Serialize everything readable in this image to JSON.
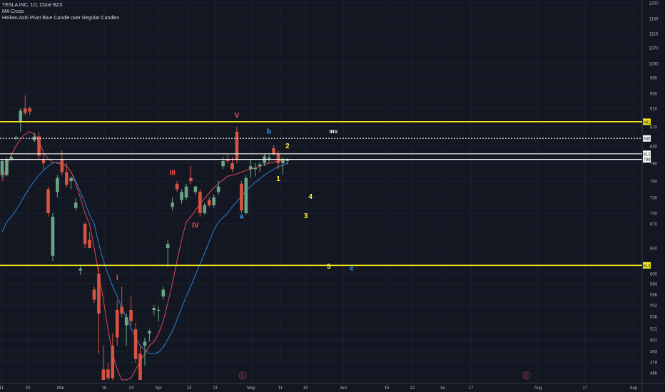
{
  "header": {
    "symbol": "TESLA INC, 1D, Cboe BZX",
    "indicator_1": "MA Cross",
    "indicator_2": "Heiken Ashi Pivot Blue Candle over Regular Candles"
  },
  "colors": {
    "background": "#131722",
    "grid": "#1c2030",
    "up": "#6ba583",
    "down": "#d75442",
    "ha_blue": "#2196f3",
    "ma_fast": "#e0455a",
    "ma_slow": "#2a7fd4",
    "yellow_line": "#f5ea1e",
    "white_line": "#ffffff",
    "label_red": "#ef5350",
    "label_blue": "#42a5f5",
    "label_yellow": "#ffeb3b",
    "axis_text": "#b2b5be"
  },
  "chart_data": {
    "type": "candlestick",
    "y_axis": {
      "range": [
        458,
        1205
      ],
      "tick_labels": [
        "1200",
        "1150",
        "1110",
        "1070",
        "1030",
        "990",
        "950",
        "910",
        "870",
        "830",
        "790",
        "760",
        "730",
        "700",
        "670",
        "640",
        "600",
        "584",
        "568",
        "552",
        "536",
        "521",
        "507",
        "493",
        "479",
        "466"
      ]
    },
    "x_axis": {
      "tick_labels": [
        "11",
        "20",
        "Mar",
        "16",
        "24",
        "Apr",
        "13",
        "21",
        "May",
        "11",
        "19",
        "Jun",
        "15",
        "22",
        "Jul",
        "17",
        "Aug",
        "17",
        "Sep"
      ]
    },
    "candles": [
      {
        "o": 795,
        "h": 800,
        "l": 765,
        "c": 770,
        "t": "up"
      },
      {
        "o": 770,
        "h": 805,
        "l": 768,
        "c": 800,
        "t": "up"
      },
      {
        "o": 800,
        "h": 810,
        "l": 795,
        "c": 805,
        "t": "up"
      },
      {
        "o": 848,
        "h": 852,
        "l": 842,
        "c": 846,
        "t": "up"
      },
      {
        "o": 880,
        "h": 910,
        "l": 860,
        "c": 905,
        "t": "up"
      },
      {
        "o": 900,
        "h": 945,
        "l": 895,
        "c": 910,
        "t": "down"
      },
      {
        "o": 910,
        "h": 915,
        "l": 895,
        "c": 903,
        "t": "down"
      },
      {
        "o": 850,
        "h": 858,
        "l": 838,
        "c": 842,
        "t": "up"
      },
      {
        "o": 850,
        "h": 860,
        "l": 800,
        "c": 808,
        "t": "down"
      },
      {
        "o": 800,
        "h": 812,
        "l": 780,
        "c": 790,
        "t": "down"
      },
      {
        "o": 745,
        "h": 750,
        "l": 690,
        "c": 700,
        "t": "down"
      },
      {
        "o": 690,
        "h": 700,
        "l": 620,
        "c": 628,
        "t": "up"
      },
      {
        "o": 740,
        "h": 770,
        "l": 730,
        "c": 765,
        "t": "up"
      },
      {
        "o": 800,
        "h": 820,
        "l": 770,
        "c": 775,
        "t": "down"
      },
      {
        "o": 775,
        "h": 790,
        "l": 748,
        "c": 753,
        "t": "down"
      },
      {
        "o": 760,
        "h": 768,
        "l": 745,
        "c": 765,
        "t": "up"
      },
      {
        "o": 720,
        "h": 728,
        "l": 705,
        "c": 710,
        "t": "up"
      },
      {
        "o": 605,
        "h": 612,
        "l": 598,
        "c": 608,
        "t": "up"
      },
      {
        "o": 670,
        "h": 675,
        "l": 640,
        "c": 645,
        "t": "down"
      },
      {
        "o": 650,
        "h": 660,
        "l": 640,
        "c": 640,
        "t": "down"
      },
      {
        "o": 575,
        "h": 580,
        "l": 555,
        "c": 560,
        "t": "down"
      },
      {
        "o": 600,
        "h": 610,
        "l": 490,
        "c": 540,
        "t": "down"
      },
      {
        "o": 470,
        "h": 500,
        "l": 450,
        "c": 455,
        "t": "down"
      },
      {
        "o": 470,
        "h": 478,
        "l": 455,
        "c": 460,
        "t": "down"
      },
      {
        "o": 500,
        "h": 515,
        "l": 455,
        "c": 460,
        "t": "down"
      },
      {
        "o": 545,
        "h": 560,
        "l": 500,
        "c": 510,
        "t": "down"
      },
      {
        "o": 550,
        "h": 580,
        "l": 535,
        "c": 540,
        "t": "down"
      },
      {
        "o": 525,
        "h": 540,
        "l": 500,
        "c": 535,
        "t": "up"
      },
      {
        "o": 545,
        "h": 565,
        "l": 525,
        "c": 530,
        "t": "down"
      },
      {
        "o": 520,
        "h": 528,
        "l": 478,
        "c": 483,
        "t": "down"
      },
      {
        "o": 490,
        "h": 500,
        "l": 450,
        "c": 455,
        "t": "down"
      },
      {
        "o": 505,
        "h": 510,
        "l": 475,
        "c": 500,
        "t": "up"
      },
      {
        "o": 515,
        "h": 520,
        "l": 505,
        "c": 518,
        "t": "up"
      },
      {
        "o": 545,
        "h": 552,
        "l": 538,
        "c": 548,
        "t": "up"
      },
      {
        "o": 545,
        "h": 550,
        "l": 530,
        "c": 545,
        "t": "up"
      },
      {
        "o": 565,
        "h": 580,
        "l": 560,
        "c": 575,
        "t": "up"
      },
      {
        "o": 640,
        "h": 650,
        "l": 610,
        "c": 645,
        "t": "up"
      },
      {
        "o": 720,
        "h": 730,
        "l": 705,
        "c": 712,
        "t": "up"
      },
      {
        "o": 745,
        "h": 760,
        "l": 740,
        "c": 755,
        "t": "down"
      },
      {
        "o": 725,
        "h": 745,
        "l": 718,
        "c": 740,
        "t": "up"
      },
      {
        "o": 730,
        "h": 755,
        "l": 725,
        "c": 750,
        "t": "up"
      },
      {
        "o": 765,
        "h": 785,
        "l": 755,
        "c": 760,
        "t": "down"
      },
      {
        "o": 740,
        "h": 752,
        "l": 735,
        "c": 750,
        "t": "up"
      },
      {
        "o": 740,
        "h": 745,
        "l": 690,
        "c": 700,
        "t": "down"
      },
      {
        "o": 700,
        "h": 720,
        "l": 695,
        "c": 715,
        "t": "up"
      },
      {
        "o": 725,
        "h": 730,
        "l": 712,
        "c": 715,
        "t": "down"
      },
      {
        "o": 715,
        "h": 735,
        "l": 710,
        "c": 730,
        "t": "up"
      },
      {
        "o": 740,
        "h": 760,
        "l": 735,
        "c": 750,
        "t": "up"
      },
      {
        "o": 785,
        "h": 805,
        "l": 780,
        "c": 795,
        "t": "up"
      },
      {
        "o": 800,
        "h": 810,
        "l": 790,
        "c": 795,
        "t": "down"
      },
      {
        "o": 790,
        "h": 805,
        "l": 775,
        "c": 780,
        "t": "down"
      },
      {
        "o": 860,
        "h": 870,
        "l": 790,
        "c": 800,
        "t": "down"
      },
      {
        "o": 755,
        "h": 760,
        "l": 700,
        "c": 705,
        "t": "down"
      },
      {
        "o": 700,
        "h": 770,
        "l": 695,
        "c": 765,
        "t": "up"
      },
      {
        "o": 780,
        "h": 800,
        "l": 765,
        "c": 785,
        "t": "up"
      },
      {
        "o": 780,
        "h": 790,
        "l": 768,
        "c": 782,
        "t": "up"
      },
      {
        "o": 785,
        "h": 792,
        "l": 775,
        "c": 788,
        "t": "up"
      },
      {
        "o": 790,
        "h": 812,
        "l": 785,
        "c": 806,
        "t": "up"
      },
      {
        "o": 800,
        "h": 810,
        "l": 792,
        "c": 803,
        "t": "up"
      },
      {
        "o": 825,
        "h": 832,
        "l": 808,
        "c": 812,
        "t": "down"
      },
      {
        "o": 812,
        "h": 820,
        "l": 780,
        "c": 790,
        "t": "down"
      },
      {
        "o": 790,
        "h": 805,
        "l": 770,
        "c": 800,
        "t": "up"
      },
      {
        "o": 795,
        "h": 802,
        "l": 788,
        "c": 800,
        "t": "up"
      }
    ],
    "ma_fast_values": [
      760,
      785,
      810,
      830,
      845,
      855,
      860,
      855,
      840,
      815,
      800,
      792,
      790,
      788,
      785,
      775,
      755,
      730,
      700,
      670,
      640,
      600,
      560,
      520,
      490,
      470,
      458,
      455,
      460,
      470,
      480,
      490,
      500,
      505,
      515,
      530,
      555,
      585,
      620,
      650,
      675,
      690,
      705,
      718,
      728,
      738,
      748,
      755,
      762,
      768,
      770,
      772,
      775,
      778,
      780,
      782,
      785,
      788,
      790,
      793,
      795,
      797,
      799
    ],
    "ma_slow_values": [
      660,
      675,
      690,
      705,
      720,
      735,
      748,
      760,
      770,
      778,
      785,
      790,
      792,
      790,
      785,
      775,
      760,
      740,
      720,
      695,
      670,
      645,
      620,
      600,
      580,
      565,
      548,
      535,
      522,
      510,
      500,
      495,
      490,
      490,
      492,
      498,
      508,
      518,
      532,
      548,
      565,
      580,
      598,
      615,
      632,
      648,
      662,
      675,
      688,
      700,
      712,
      722,
      732,
      742,
      750,
      758,
      764,
      770,
      775,
      780,
      784,
      787,
      790
    ],
    "levels": [
      {
        "value": 881,
        "label": "881",
        "style": "solid",
        "color": "yellow"
      },
      {
        "value": 846,
        "label": "846",
        "style": "dotted",
        "color": "white"
      },
      {
        "value": 812,
        "label": "812",
        "style": "solid",
        "color": "white"
      },
      {
        "value": 799,
        "label": "799",
        "style": "solid",
        "color": "white"
      },
      {
        "value": 613,
        "label": "613",
        "style": "solid",
        "color": "yellow"
      }
    ],
    "annotations": [
      {
        "text": "V",
        "color": "label_red",
        "x_index": 51,
        "y": 890
      },
      {
        "text": "III",
        "color": "label_red",
        "x_index": 37,
        "y": 770
      },
      {
        "text": "IV",
        "color": "label_red",
        "x_index": 42,
        "y": 665
      },
      {
        "text": "I",
        "color": "label_red",
        "x_index": 25,
        "y": 590
      },
      {
        "text": "b",
        "color": "label_blue",
        "x_index": 58,
        "y": 856
      },
      {
        "text": "a",
        "color": "label_blue",
        "x_index": 52,
        "y": 685
      },
      {
        "text": "c",
        "color": "label_blue",
        "x_index": 76,
        "y": 605
      },
      {
        "text": "2",
        "color": "label_yellow",
        "x_index": 62,
        "y": 825
      },
      {
        "text": "1",
        "color": "label_yellow",
        "x_index": 60,
        "y": 760
      },
      {
        "text": "4",
        "color": "label_yellow",
        "x_index": 67,
        "y": 727
      },
      {
        "text": "3",
        "color": "label_yellow",
        "x_index": 66,
        "y": 686
      },
      {
        "text": "5",
        "color": "label_yellow",
        "x_index": 71,
        "y": 608
      },
      {
        "text": "INV",
        "color": "white_line",
        "x_index": 72,
        "y": 857
      }
    ],
    "event_markers": [
      "E",
      "E"
    ]
  }
}
